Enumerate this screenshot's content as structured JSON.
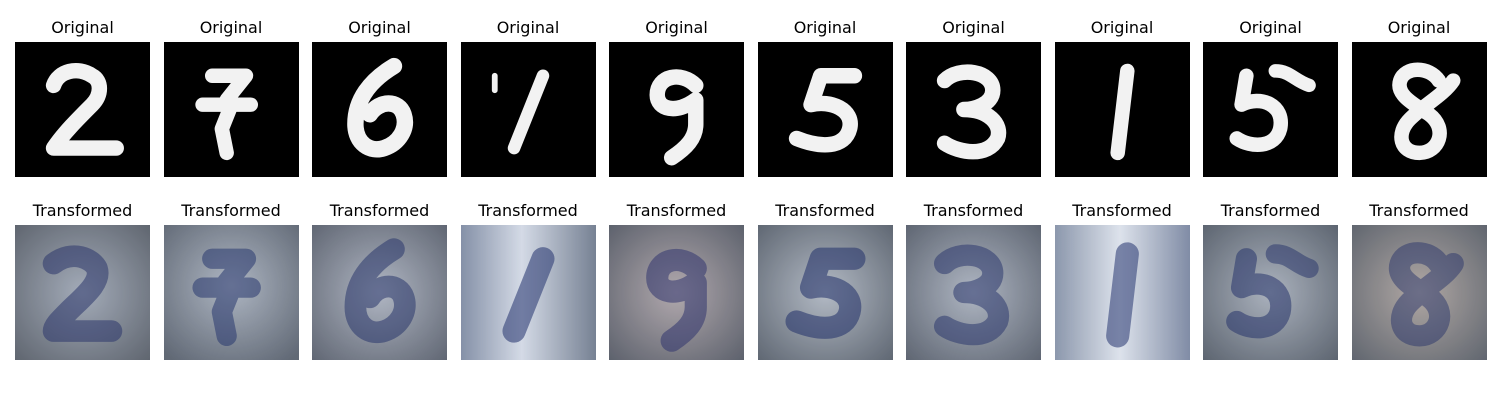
{
  "figure": {
    "panels": [
      {
        "title": "Original",
        "image_role": "original",
        "cells": [
          {
            "label": "digit-2",
            "digit": "2"
          },
          {
            "label": "digit-7",
            "digit": "7"
          },
          {
            "label": "digit-6",
            "digit": "6"
          },
          {
            "label": "digit-1",
            "digit": "1"
          },
          {
            "label": "digit-9",
            "digit": "9"
          },
          {
            "label": "digit-5",
            "digit": "5"
          },
          {
            "label": "digit-3",
            "digit": "3"
          },
          {
            "label": "digit-1b",
            "digit": "1"
          },
          {
            "label": "digit-5b",
            "digit": "5"
          },
          {
            "label": "digit-8",
            "digit": "8"
          }
        ]
      },
      {
        "title": "Transformed",
        "image_role": "transformed",
        "cells": [
          {
            "label": "transformed-2",
            "digit": "2"
          },
          {
            "label": "transformed-7",
            "digit": "7"
          },
          {
            "label": "transformed-6",
            "digit": "6"
          },
          {
            "label": "transformed-1",
            "digit": "1"
          },
          {
            "label": "transformed-9",
            "digit": "9"
          },
          {
            "label": "transformed-5",
            "digit": "5"
          },
          {
            "label": "transformed-3",
            "digit": "3"
          },
          {
            "label": "transformed-1b",
            "digit": "1"
          },
          {
            "label": "transformed-5b",
            "digit": "5"
          },
          {
            "label": "transformed-8",
            "digit": "8"
          }
        ]
      }
    ],
    "colors": {
      "original_background": "#000000",
      "original_stroke": "#f2f2f2",
      "transformed_background": "#6f7580",
      "transformed_dark": "#1f2f6b",
      "transformed_light": "#d7dde8"
    }
  }
}
